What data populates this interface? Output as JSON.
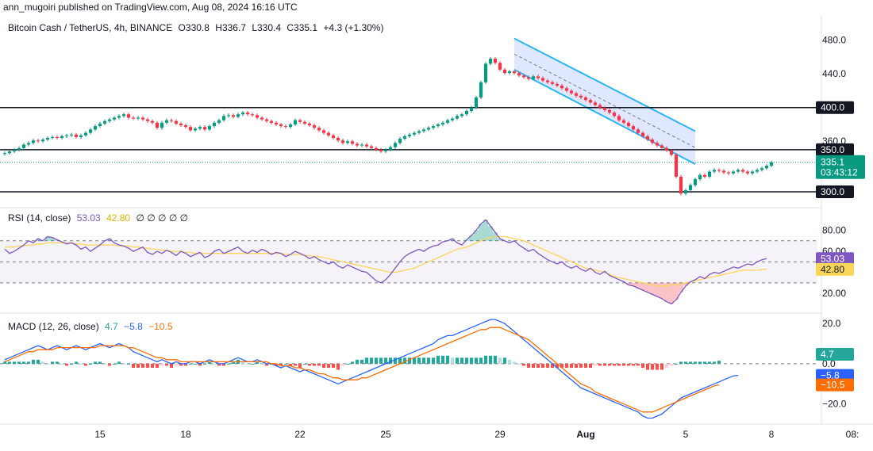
{
  "publisher": "ann_mugoiri published on TradingView.com, Aug 08, 2024 16:16 UTC",
  "symbol": {
    "title": "Bitcoin Cash / TetherUS, 4h, BINANCE",
    "open_label": "O",
    "open": "330.8",
    "high_label": "H",
    "high": "336.7",
    "low_label": "L",
    "low": "330.4",
    "close_label": "C",
    "close": "335.1",
    "change": "+4.3 (+1.30%)"
  },
  "price_badge": {
    "value": "335.1",
    "countdown": "03:43:12"
  },
  "colors": {
    "up": "#089981",
    "down": "#f23645",
    "channel": "#29b6f6",
    "rsi": "#7e57c2",
    "rsi_ma": "#f9d65a",
    "macd": "#2962ff",
    "signal": "#ff6d00",
    "hist_pos": "#26a69a",
    "hist_neg": "#ef5350"
  },
  "rsi_legend": {
    "title": "RSI (14, close)",
    "rsi": "53.03",
    "ma": "42.80",
    "extras": "∅ ∅ ∅ ∅ ∅"
  },
  "macd_legend": {
    "title": "MACD (12, 26, close)",
    "hist": "4.7",
    "macd": "−5.8",
    "signal": "−10.5"
  },
  "chart_data": [
    {
      "type": "candlestick",
      "x_ticks": [
        {
          "label": "15",
          "i": 20
        },
        {
          "label": "18",
          "i": 38
        },
        {
          "label": "22",
          "i": 62
        },
        {
          "label": "25",
          "i": 80
        },
        {
          "label": "29",
          "i": 104
        },
        {
          "label": "Aug",
          "i": 122
        },
        {
          "label": "5",
          "i": 143
        },
        {
          "label": "8",
          "i": 161
        },
        {
          "label": "08:",
          "i": 178
        }
      ],
      "y_ticks": [
        "480.0",
        "440.0",
        "360.0"
      ],
      "ylim": [
        285,
        490
      ],
      "levels": [
        {
          "value": 400,
          "label": "400.0"
        },
        {
          "value": 350,
          "label": "350.0"
        },
        {
          "value": 300,
          "label": "300.0"
        }
      ],
      "channel": {
        "upper": [
          {
            "i": 107,
            "v": 482
          },
          {
            "i": 145,
            "v": 372
          }
        ],
        "lower": [
          {
            "i": 107,
            "v": 445
          },
          {
            "i": 145,
            "v": 333
          }
        ]
      },
      "last_price": 335.1,
      "close": [
        346,
        348,
        350,
        352,
        356,
        358,
        361,
        360,
        362,
        364,
        365,
        364,
        366,
        367,
        368,
        365,
        367,
        370,
        374,
        378,
        381,
        384,
        386,
        388,
        390,
        392,
        388,
        387,
        388,
        386,
        384,
        382,
        376,
        382,
        385,
        384,
        381,
        379,
        377,
        373,
        375,
        377,
        374,
        378,
        382,
        385,
        390,
        391,
        389,
        392,
        394,
        392,
        391,
        388,
        386,
        384,
        382,
        380,
        378,
        377,
        380,
        385,
        383,
        381,
        379,
        376,
        373,
        370,
        367,
        364,
        361,
        358,
        360,
        357,
        355,
        356,
        354,
        352,
        350,
        348,
        350,
        353,
        358,
        363,
        366,
        368,
        370,
        372,
        374,
        376,
        378,
        380,
        382,
        385,
        387,
        390,
        392,
        396,
        400,
        412,
        430,
        452,
        458,
        453,
        445,
        441,
        443,
        441,
        438,
        436,
        434,
        437,
        435,
        432,
        430,
        428,
        426,
        423,
        420,
        417,
        414,
        412,
        409,
        406,
        403,
        400,
        397,
        394,
        390,
        385,
        382,
        378,
        374,
        370,
        366,
        362,
        358,
        355,
        352,
        349,
        344,
        318,
        298,
        302,
        308,
        315,
        320,
        318,
        324,
        326,
        325,
        323,
        322,
        324,
        326,
        324,
        322,
        324,
        326,
        328,
        331,
        335
      ],
      "highs": [],
      "lows": []
    },
    {
      "type": "line",
      "title": "RSI (14, close)",
      "y_ticks": [
        "80.00",
        "60.00",
        "20.00"
      ],
      "ylim": [
        5,
        100
      ],
      "bands": {
        "upper": 70,
        "middle": 50,
        "lower": 30
      },
      "series": [
        {
          "name": "RSI",
          "values": [
            62,
            58,
            60,
            63,
            66,
            70,
            68,
            72,
            70,
            74,
            73,
            71,
            69,
            67,
            68,
            66,
            62,
            64,
            60,
            63,
            66,
            70,
            72,
            68,
            66,
            65,
            63,
            60,
            62,
            64,
            59,
            57,
            60,
            58,
            61,
            59,
            56,
            60,
            58,
            55,
            57,
            59,
            54,
            56,
            60,
            62,
            58,
            60,
            62,
            64,
            60,
            58,
            61,
            59,
            62,
            60,
            57,
            59,
            58,
            55,
            57,
            60,
            58,
            56,
            53,
            55,
            52,
            50,
            48,
            50,
            46,
            44,
            47,
            45,
            43,
            41,
            40,
            36,
            32,
            30,
            33,
            38,
            44,
            50,
            55,
            58,
            60,
            62,
            60,
            63,
            65,
            66,
            69,
            70,
            72,
            68,
            66,
            71,
            75,
            80,
            86,
            90,
            84,
            78,
            72,
            70,
            68,
            70,
            66,
            63,
            60,
            62,
            58,
            55,
            52,
            50,
            48,
            50,
            46,
            44,
            46,
            43,
            41,
            44,
            40,
            38,
            41,
            37,
            35,
            33,
            31,
            28,
            27,
            25,
            23,
            21,
            19,
            17,
            15,
            12,
            10,
            14,
            21,
            27,
            31,
            33,
            36,
            34,
            38,
            40,
            39,
            41,
            43,
            45,
            44,
            46,
            48,
            47,
            50,
            52,
            53
          ]
        },
        {
          "name": "MA",
          "values": [
            64,
            64,
            64,
            65,
            65,
            66,
            66,
            67,
            67,
            68,
            68,
            68,
            68,
            68,
            68,
            67,
            67,
            66,
            66,
            66,
            66,
            66,
            66,
            66,
            65,
            65,
            65,
            64,
            64,
            63,
            63,
            62,
            62,
            61,
            61,
            60,
            60,
            60,
            59,
            59,
            58,
            58,
            58,
            58,
            58,
            58,
            58,
            58,
            58,
            58,
            58,
            58,
            58,
            58,
            58,
            58,
            58,
            58,
            58,
            57,
            57,
            57,
            57,
            56,
            56,
            55,
            55,
            54,
            53,
            52,
            51,
            50,
            49,
            48,
            47,
            46,
            45,
            44,
            43,
            42,
            41,
            40,
            40,
            41,
            42,
            43,
            44,
            46,
            48,
            50,
            52,
            54,
            56,
            58,
            60,
            62,
            63,
            64,
            66,
            68,
            70,
            72,
            73,
            74,
            74,
            74,
            73,
            72,
            71,
            70,
            68,
            66,
            64,
            62,
            60,
            58,
            56,
            54,
            52,
            50,
            48,
            46,
            44,
            43,
            42,
            41,
            40,
            38,
            36,
            35,
            34,
            33,
            32,
            31,
            30,
            29,
            28,
            27,
            27,
            27,
            28,
            28,
            29,
            30,
            31,
            32,
            33,
            34,
            35,
            36,
            37,
            38,
            39,
            40,
            41,
            42,
            42,
            42,
            42,
            43,
            43
          ]
        }
      ]
    },
    {
      "type": "line",
      "title": "MACD (12, 26, close)",
      "y_ticks": [
        "20.0",
        "0.0",
        "−20.0"
      ],
      "ylim": [
        -28,
        24
      ],
      "series": [
        {
          "name": "MACD",
          "values": [
            2,
            3,
            4,
            5,
            6,
            7,
            8,
            9,
            8,
            7,
            8,
            9,
            8,
            7,
            8,
            9,
            8,
            7,
            8,
            9,
            10,
            9,
            8,
            9,
            10,
            9,
            8,
            6,
            5,
            4,
            3,
            2,
            1,
            2,
            1,
            0,
            1,
            0,
            0,
            1,
            1,
            0,
            1,
            2,
            1,
            0,
            0,
            1,
            2,
            3,
            2,
            1,
            1,
            2,
            1,
            0,
            0,
            -1,
            -2,
            -1,
            -2,
            -3,
            -4,
            -3,
            -4,
            -5,
            -6,
            -7,
            -8,
            -9,
            -10,
            -9,
            -8,
            -7,
            -6,
            -5,
            -4,
            -3,
            -2,
            -1,
            0,
            1,
            2,
            3,
            4,
            5,
            6,
            7,
            8,
            9,
            10,
            12,
            13,
            14,
            14,
            15,
            16,
            17,
            18,
            19,
            20,
            21,
            22,
            22,
            21,
            20,
            18,
            16,
            14,
            12,
            10,
            8,
            6,
            4,
            2,
            0,
            -2,
            -4,
            -6,
            -8,
            -10,
            -12,
            -13,
            -14,
            -15,
            -16,
            -17,
            -18,
            -19,
            -20,
            -21,
            -22,
            -23,
            -24,
            -26,
            -27,
            -27,
            -26,
            -25,
            -23,
            -21,
            -19,
            -17,
            -16,
            -15,
            -14,
            -13,
            -12,
            -11,
            -10,
            -9,
            -8,
            -7,
            -6,
            -5.8
          ]
        },
        {
          "name": "Signal",
          "values": [
            1,
            2,
            3,
            4,
            5,
            6,
            6,
            7,
            7,
            7,
            7,
            8,
            8,
            8,
            8,
            8,
            8,
            8,
            8,
            8,
            9,
            9,
            9,
            9,
            9,
            9,
            8,
            8,
            7,
            6,
            5,
            4,
            3,
            3,
            2,
            2,
            2,
            1,
            1,
            1,
            1,
            1,
            1,
            1,
            1,
            1,
            1,
            1,
            1,
            1,
            1,
            1,
            1,
            1,
            1,
            1,
            0,
            0,
            -1,
            -1,
            -1,
            -2,
            -2,
            -3,
            -3,
            -4,
            -5,
            -5,
            -6,
            -7,
            -7,
            -8,
            -8,
            -8,
            -8,
            -7,
            -7,
            -6,
            -5,
            -4,
            -3,
            -2,
            -1,
            0,
            1,
            2,
            3,
            4,
            5,
            6,
            7,
            8,
            9,
            10,
            11,
            12,
            13,
            14,
            15,
            16,
            17,
            17,
            18,
            18,
            18,
            17,
            16,
            15,
            14,
            13,
            12,
            10,
            8,
            6,
            4,
            2,
            0,
            -2,
            -4,
            -6,
            -8,
            -10,
            -11,
            -12,
            -14,
            -15,
            -16,
            -17,
            -18,
            -19,
            -20,
            -21,
            -22,
            -23,
            -24,
            -24,
            -24,
            -23,
            -22,
            -21,
            -20,
            -19,
            -18,
            -17,
            -16,
            -15,
            -14,
            -13,
            -12,
            -11,
            -10.5
          ]
        }
      ]
    }
  ]
}
